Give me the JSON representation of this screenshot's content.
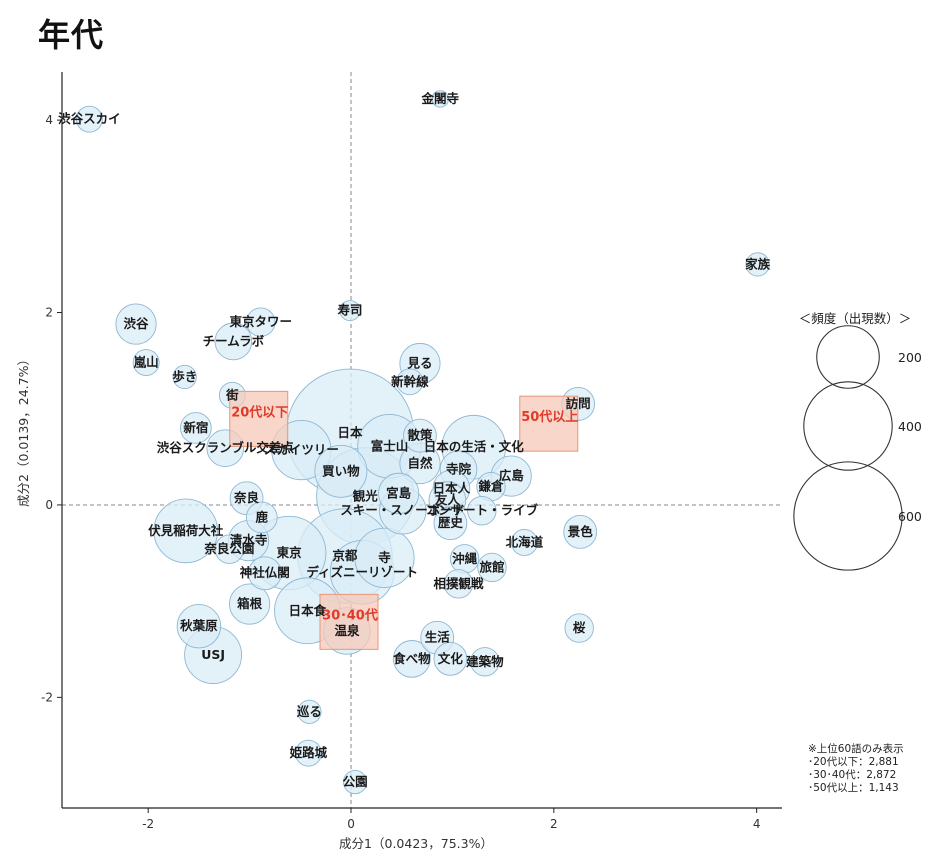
{
  "title": "年代",
  "chart_data": {
    "type": "scatter",
    "xlabel": "成分1（0.0423，75.3%）",
    "ylabel": "成分2（0.0139，24.7%）",
    "xlim": [
      -2.85,
      4.25
    ],
    "ylim": [
      -3.15,
      4.5
    ],
    "xticks": [
      -2,
      0,
      2,
      4
    ],
    "yticks": [
      -2,
      0,
      2,
      4
    ],
    "reference_lines": "dashed at x=0 and y=0",
    "grid": false,
    "words": [
      {
        "label": "金閣寺",
        "x": 0.88,
        "y": 4.22,
        "freq": 10
      },
      {
        "label": "渋谷スカイ",
        "x": -2.58,
        "y": 4.01,
        "freq": 25
      },
      {
        "label": "家族",
        "x": 4.01,
        "y": 2.5,
        "freq": 20
      },
      {
        "label": "東京タワー",
        "x": -0.89,
        "y": 1.9,
        "freq": 30
      },
      {
        "label": "寿司",
        "x": -0.01,
        "y": 2.02,
        "freq": 15
      },
      {
        "label": "渋谷",
        "x": -2.12,
        "y": 1.88,
        "freq": 60
      },
      {
        "label": "チームラボ",
        "x": -1.16,
        "y": 1.7,
        "freq": 50
      },
      {
        "label": "見る",
        "x": 0.68,
        "y": 1.47,
        "freq": 60
      },
      {
        "label": "嵐山",
        "x": -2.02,
        "y": 1.48,
        "freq": 25
      },
      {
        "label": "歩き",
        "x": -1.64,
        "y": 1.33,
        "freq": 20
      },
      {
        "label": "新幹線",
        "x": 0.58,
        "y": 1.28,
        "freq": 25
      },
      {
        "label": "訪問",
        "x": 2.24,
        "y": 1.05,
        "freq": 40
      },
      {
        "label": "街",
        "x": -1.17,
        "y": 1.14,
        "freq": 25
      },
      {
        "label": "日本",
        "x": -0.01,
        "y": 0.75,
        "freq": 600
      },
      {
        "label": "新宿",
        "x": -1.53,
        "y": 0.8,
        "freq": 35
      },
      {
        "label": "渋谷スクランブル交差点",
        "x": -1.24,
        "y": 0.59,
        "freq": 50
      },
      {
        "label": "富士山",
        "x": 0.38,
        "y": 0.61,
        "freq": 150
      },
      {
        "label": "散策",
        "x": 0.68,
        "y": 0.72,
        "freq": 40
      },
      {
        "label": "日本の生活・文化",
        "x": 1.21,
        "y": 0.6,
        "freq": 150
      },
      {
        "label": "スカイツリー",
        "x": -0.49,
        "y": 0.57,
        "freq": 130
      },
      {
        "label": "買い物",
        "x": -0.1,
        "y": 0.35,
        "freq": 100
      },
      {
        "label": "自然",
        "x": 0.68,
        "y": 0.43,
        "freq": 60
      },
      {
        "label": "寺院",
        "x": 1.06,
        "y": 0.37,
        "freq": 50
      },
      {
        "label": "広島",
        "x": 1.58,
        "y": 0.3,
        "freq": 60
      },
      {
        "label": "日本人",
        "x": 0.99,
        "y": 0.17,
        "freq": 50
      },
      {
        "label": "鎌倉",
        "x": 1.38,
        "y": 0.19,
        "freq": 30
      },
      {
        "label": "観光",
        "x": 0.14,
        "y": 0.09,
        "freq": 350
      },
      {
        "label": "宮島",
        "x": 0.47,
        "y": 0.12,
        "freq": 60
      },
      {
        "label": "友人",
        "x": 0.95,
        "y": 0.05,
        "freq": 50
      },
      {
        "label": "奈良",
        "x": -1.03,
        "y": 0.07,
        "freq": 40
      },
      {
        "label": "鹿",
        "x": -0.88,
        "y": -0.13,
        "freq": 35
      },
      {
        "label": "スキー・スノーボード",
        "x": 0.51,
        "y": -0.06,
        "freq": 80
      },
      {
        "label": "コンサート・ライブ",
        "x": 1.29,
        "y": -0.06,
        "freq": 30
      },
      {
        "label": "伏見稲荷大社",
        "x": -1.63,
        "y": -0.27,
        "freq": 150
      },
      {
        "label": "歴史",
        "x": 0.98,
        "y": -0.19,
        "freq": 40
      },
      {
        "label": "景色",
        "x": 2.26,
        "y": -0.28,
        "freq": 40
      },
      {
        "label": "北海道",
        "x": 1.71,
        "y": -0.39,
        "freq": 25
      },
      {
        "label": "京都",
        "x": -0.06,
        "y": -0.53,
        "freq": 330
      },
      {
        "label": "清水寺",
        "x": -1.01,
        "y": -0.37,
        "freq": 60
      },
      {
        "label": "寺",
        "x": 0.33,
        "y": -0.55,
        "freq": 130
      },
      {
        "label": "東京",
        "x": -0.61,
        "y": -0.5,
        "freq": 200
      },
      {
        "label": "奈良公園",
        "x": -1.2,
        "y": -0.46,
        "freq": 30
      },
      {
        "label": "沖縄",
        "x": 1.12,
        "y": -0.56,
        "freq": 30
      },
      {
        "label": "ディズニーリゾート",
        "x": 0.11,
        "y": -0.7,
        "freq": 150
      },
      {
        "label": "神社仏閣",
        "x": -0.85,
        "y": -0.71,
        "freq": 40
      },
      {
        "label": "旅館",
        "x": 1.39,
        "y": -0.65,
        "freq": 30
      },
      {
        "label": "相撲観戦",
        "x": 1.06,
        "y": -0.82,
        "freq": 30
      },
      {
        "label": "日本食",
        "x": -0.43,
        "y": -1.1,
        "freq": 160
      },
      {
        "label": "箱根",
        "x": -1.0,
        "y": -1.03,
        "freq": 60
      },
      {
        "label": "桜",
        "x": 2.25,
        "y": -1.28,
        "freq": 30
      },
      {
        "label": "秋葉原",
        "x": -1.5,
        "y": -1.26,
        "freq": 70
      },
      {
        "label": "温泉",
        "x": -0.04,
        "y": -1.31,
        "freq": 80
      },
      {
        "label": "生活",
        "x": 0.85,
        "y": -1.38,
        "freq": 40
      },
      {
        "label": "USJ",
        "x": -1.36,
        "y": -1.56,
        "freq": 120
      },
      {
        "label": "文化",
        "x": 0.98,
        "y": -1.6,
        "freq": 40
      },
      {
        "label": "建築物",
        "x": 1.32,
        "y": -1.63,
        "freq": 30
      },
      {
        "label": "食べ物",
        "x": 0.6,
        "y": -1.6,
        "freq": 50
      },
      {
        "label": "巡る",
        "x": -0.41,
        "y": -2.15,
        "freq": 20
      },
      {
        "label": "姫路城",
        "x": -0.42,
        "y": -2.58,
        "freq": 25
      },
      {
        "label": "公園",
        "x": 0.04,
        "y": -2.88,
        "freq": 20
      }
    ],
    "groups": [
      {
        "label": "20代以下",
        "x": -0.9,
        "y": 0.9,
        "color": "#e03a2a"
      },
      {
        "label": "30･40代",
        "x": -0.01,
        "y": -1.21,
        "color": "#e03a2a"
      },
      {
        "label": "50代以上",
        "x": 1.96,
        "y": 0.85,
        "color": "#e03a2a"
      }
    ],
    "bubble_color": "#d9ecf7",
    "bubble_stroke": "#8fb8d3",
    "legend": {
      "title": "＜頻度（出現数）＞",
      "placement": "right",
      "sizes": [
        200,
        400,
        600
      ],
      "labels": [
        "200",
        "400",
        "600"
      ]
    },
    "note": [
      "※上位60語のみ表示",
      "･20代以下：2,881",
      "･30･40代：2,872",
      "･50代以上：1,143"
    ]
  }
}
